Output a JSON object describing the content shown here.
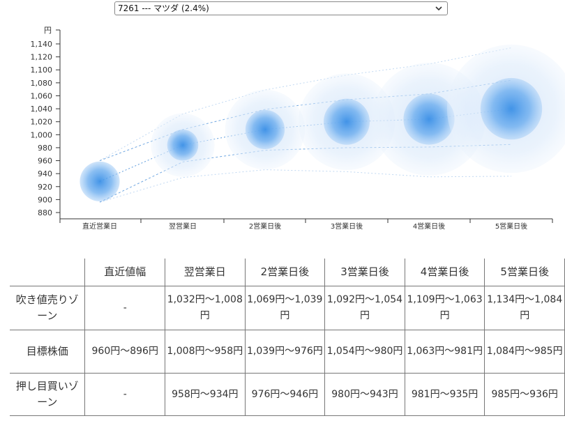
{
  "selector": {
    "selected_label": "7261 --- マツダ (2.4%)",
    "icon": "chevron-down-icon"
  },
  "chart_data": {
    "type": "scatter",
    "title": "",
    "ylabel": "円",
    "ylim": [
      880,
      1140
    ],
    "yticks": [
      880,
      900,
      920,
      940,
      960,
      980,
      1000,
      1020,
      1040,
      1060,
      1080,
      1100,
      1120,
      1140
    ],
    "categories": [
      "直近営業日",
      "翌営業日",
      "2営業日後",
      "3営業日後",
      "4営業日後",
      "5営業日後"
    ],
    "center": [
      928,
      984,
      1008,
      1020,
      1024,
      1040
    ],
    "inner_range": [
      [
        896,
        960
      ],
      [
        958,
        1008
      ],
      [
        976,
        1039
      ],
      [
        980,
        1054
      ],
      [
        981,
        1063
      ],
      [
        985,
        1084
      ]
    ],
    "outer_range": [
      [
        896,
        960
      ],
      [
        934,
        1032
      ],
      [
        946,
        1069
      ],
      [
        943,
        1092
      ],
      [
        935,
        1109
      ],
      [
        936,
        1134
      ]
    ],
    "colors": {
      "bubble": "#3a8fe6",
      "guide": "#4a90d9",
      "axis": "#333333"
    }
  },
  "table": {
    "headers": [
      "直近値幅",
      "翌営業日",
      "2営業日後",
      "3営業日後",
      "4営業日後",
      "5営業日後"
    ],
    "rows": [
      {
        "label": "吹き値売りゾーン",
        "cells": [
          "-",
          "1,032円〜1,008円",
          "1,069円〜1,039円",
          "1,092円〜1,054円",
          "1,109円〜1,063円",
          "1,134円〜1,084円"
        ]
      },
      {
        "label": "目標株価",
        "cells": [
          "960円〜896円",
          "1,008円〜958円",
          "1,039円〜976円",
          "1,054円〜980円",
          "1,063円〜981円",
          "1,084円〜985円"
        ]
      },
      {
        "label": "押し目買いゾーン",
        "cells": [
          "-",
          "958円〜934円",
          "976円〜946円",
          "980円〜943円",
          "981円〜935円",
          "985円〜936円"
        ]
      }
    ]
  }
}
